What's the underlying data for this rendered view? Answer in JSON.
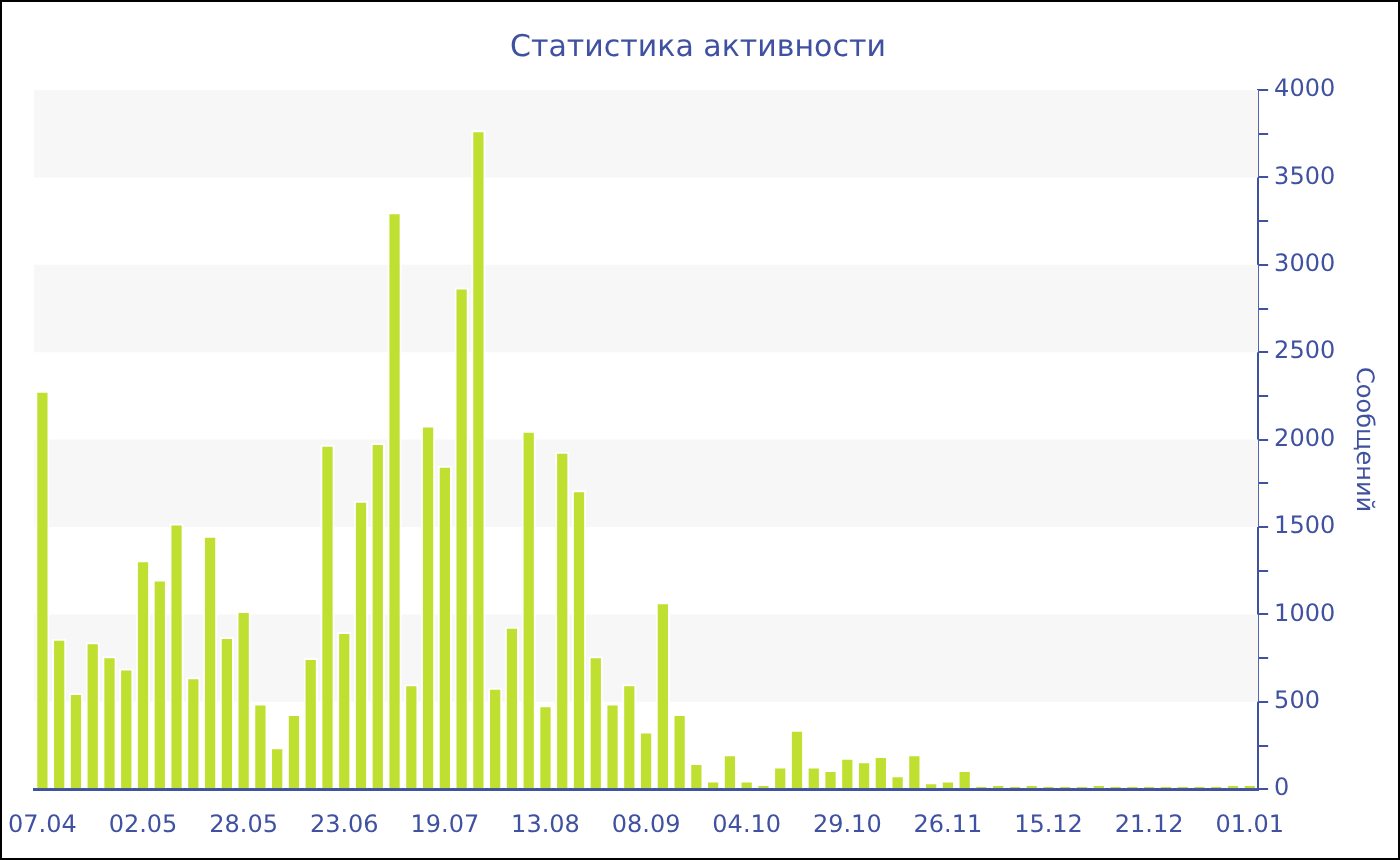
{
  "chart_data": {
    "type": "bar",
    "title": "Статистика активности",
    "ylabel": "Сообщений",
    "categories": [
      "07.04",
      null,
      null,
      null,
      null,
      null,
      "02.05",
      null,
      null,
      null,
      null,
      null,
      "28.05",
      null,
      null,
      null,
      null,
      null,
      "23.06",
      null,
      null,
      null,
      null,
      null,
      "19.07",
      null,
      null,
      null,
      null,
      null,
      "13.08",
      null,
      null,
      null,
      null,
      null,
      "08.09",
      null,
      null,
      null,
      null,
      null,
      "04.10",
      null,
      null,
      null,
      null,
      null,
      "29.10",
      null,
      null,
      null,
      null,
      null,
      "26.11",
      null,
      null,
      null,
      null,
      null,
      "15.12",
      null,
      null,
      null,
      null,
      null,
      "21.12",
      null,
      null,
      null,
      null,
      null,
      "01.01"
    ],
    "values": [
      2280,
      860,
      550,
      840,
      760,
      690,
      1310,
      1200,
      1520,
      640,
      1450,
      870,
      1020,
      490,
      240,
      430,
      750,
      1970,
      900,
      1650,
      1980,
      3300,
      600,
      2080,
      1850,
      2870,
      3770,
      580,
      930,
      2050,
      480,
      1930,
      1710,
      760,
      490,
      600,
      330,
      1070,
      430,
      150,
      50,
      200,
      50,
      30,
      130,
      340,
      130,
      110,
      180,
      160,
      190,
      80,
      200,
      40,
      50,
      110,
      20,
      30,
      20,
      30,
      20,
      20,
      20,
      30,
      20,
      20,
      20,
      20,
      20,
      20,
      20,
      30,
      30
    ],
    "color": "#bfe031",
    "ylim": [
      0,
      4000
    ],
    "yticks": [
      0,
      {
        "value": 250,
        "label": null
      },
      500,
      {
        "value": 750,
        "label": null
      },
      1000,
      {
        "value": 1250,
        "label": null
      },
      1500,
      {
        "value": 1750,
        "label": null
      },
      2000,
      {
        "value": 2250,
        "label": null
      },
      2500,
      {
        "value": 2750,
        "label": null
      },
      3000,
      {
        "value": 3250,
        "label": null
      },
      3500,
      {
        "value": 3750,
        "label": null
      },
      4000
    ],
    "bands": [
      {
        "axis": "y",
        "from": 500,
        "to": 1000,
        "color": "#f7f7f7"
      },
      {
        "axis": "y",
        "from": 1500,
        "to": 2000,
        "color": "#f7f7f7"
      },
      {
        "axis": "y",
        "from": 2500,
        "to": 3000,
        "color": "#f7f7f7"
      },
      {
        "axis": "y",
        "from": 3500,
        "to": 4000,
        "color": "#f7f7f7"
      }
    ]
  }
}
